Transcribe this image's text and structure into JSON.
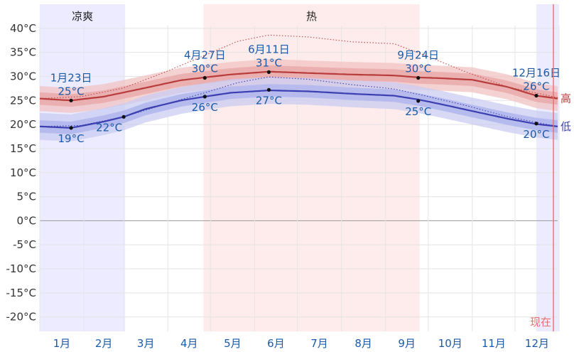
{
  "chart_data": {
    "type": "line",
    "y_unit": "°C",
    "ylim": [
      -23,
      45
    ],
    "y_ticks": [
      -20,
      -15,
      -10,
      -5,
      0,
      5,
      10,
      15,
      20,
      25,
      30,
      35,
      40
    ],
    "y_tick_labels": [
      "-20°C",
      "-15°C",
      "-10°C",
      "-5°C",
      "0°C",
      "5°C",
      "10°C",
      "15°C",
      "20°C",
      "25°C",
      "30°C",
      "35°C",
      "40°C"
    ],
    "months": [
      "1月",
      "2月",
      "3月",
      "4月",
      "5月",
      "6月",
      "7月",
      "8月",
      "9月",
      "10月",
      "11月",
      "12月"
    ],
    "grid": true,
    "seasons": [
      {
        "label": "凉爽",
        "start_day": 1,
        "end_day": 60,
        "color": "#ecebff"
      },
      {
        "label": "热",
        "start_day": 116,
        "end_day": 267,
        "color": "#fdeceb"
      },
      {
        "label": "",
        "start_day": 350,
        "end_day": 365,
        "color": "#ecebff"
      }
    ],
    "series": [
      {
        "name": "高",
        "color": "#b83c3c",
        "x": [
          1,
          23,
          46,
          75,
          100,
          117,
          135,
          162,
          190,
          220,
          250,
          267,
          285,
          305,
          330,
          350,
          365
        ],
        "y": [
          25.4,
          25.0,
          25.8,
          27.6,
          29.2,
          29.8,
          30.4,
          31.0,
          30.7,
          30.4,
          30.2,
          29.8,
          29.6,
          29.3,
          27.8,
          26.0,
          25.4
        ],
        "band_inner": 1.3,
        "band_outer": 2.6
      },
      {
        "name": "低",
        "color": "#3b3fb0",
        "x": [
          1,
          23,
          46,
          60,
          75,
          100,
          117,
          135,
          162,
          190,
          220,
          250,
          267,
          285,
          305,
          330,
          350,
          365
        ],
        "y": [
          19.6,
          19.3,
          20.6,
          21.6,
          23.2,
          25.0,
          25.8,
          26.6,
          27.1,
          26.9,
          26.4,
          26.0,
          25.2,
          24.1,
          22.8,
          21.2,
          20.1,
          19.6
        ],
        "band_inner": 1.3,
        "band_outer": 2.8
      },
      {
        "name": "",
        "style": "dotted",
        "color": "#c04848",
        "x": [
          1,
          30,
          60,
          90,
          117,
          140,
          162,
          190,
          220,
          250,
          270,
          300,
          330,
          365
        ],
        "y": [
          25.4,
          25.8,
          27.6,
          31.0,
          34.4,
          37.3,
          38.6,
          38.2,
          37.2,
          36.8,
          34.6,
          31.0,
          27.8,
          25.6
        ]
      },
      {
        "name": "",
        "style": "dotted",
        "color": "#3b3fb0",
        "x": [
          1,
          30,
          60,
          90,
          117,
          140,
          162,
          190,
          220,
          250,
          270,
          300,
          330,
          365
        ],
        "y": [
          19.6,
          19.8,
          21.6,
          24.3,
          26.6,
          28.7,
          29.9,
          29.4,
          28.3,
          27.4,
          26.1,
          24.0,
          21.6,
          19.6
        ]
      }
    ],
    "annotations": [
      {
        "day": 23,
        "value": 25,
        "date": "1月23日",
        "temp": "25°C",
        "pos": "above"
      },
      {
        "day": 23,
        "value": 19.3,
        "date": "",
        "temp": "19°C",
        "pos": "below"
      },
      {
        "day": 60,
        "value": 21.6,
        "date": "",
        "temp": "22°C",
        "pos": "below-left"
      },
      {
        "day": 117,
        "value": 29.7,
        "date": "4月27日",
        "temp": "30°C",
        "pos": "above"
      },
      {
        "day": 117,
        "value": 25.8,
        "date": "",
        "temp": "26°C",
        "pos": "below"
      },
      {
        "day": 162,
        "value": 30.9,
        "date": "6月11日",
        "temp": "31°C",
        "pos": "above"
      },
      {
        "day": 162,
        "value": 27.2,
        "date": "",
        "temp": "27°C",
        "pos": "below"
      },
      {
        "day": 267,
        "value": 29.7,
        "date": "9月24日",
        "temp": "30°C",
        "pos": "above"
      },
      {
        "day": 267,
        "value": 24.9,
        "date": "",
        "temp": "25°C",
        "pos": "below"
      },
      {
        "day": 350,
        "value": 26.0,
        "date": "12月16日",
        "temp": "26°C",
        "pos": "above"
      },
      {
        "day": 350,
        "value": 20.2,
        "date": "",
        "temp": "20°C",
        "pos": "below"
      }
    ],
    "now_marker": {
      "day": 362,
      "label": "现在",
      "color": "#e76f6f"
    }
  }
}
